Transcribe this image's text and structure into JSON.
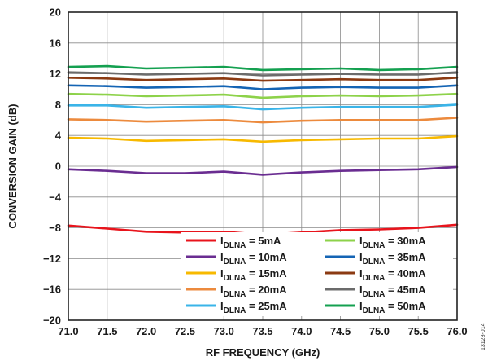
{
  "chart_data": {
    "type": "line",
    "xlabel": "RF FREQUENCY (GHz)",
    "ylabel": "CONVERSION GAIN (dB)",
    "xlim": [
      71.0,
      76.0
    ],
    "ylim": [
      -20,
      20
    ],
    "x_ticks": [
      "71.0",
      "71.5",
      "72.0",
      "72.5",
      "73.0",
      "73.5",
      "74.0",
      "74.5",
      "75.0",
      "75.5",
      "76.0"
    ],
    "y_ticks": [
      "20",
      "16",
      "12",
      "8",
      "4",
      "0",
      "−4",
      "−8",
      "−12",
      "−16",
      "−20"
    ],
    "grid": true,
    "legend_position": "bottom-right",
    "figure_id": "13128-014",
    "x": [
      71.0,
      71.5,
      72.0,
      72.5,
      73.0,
      73.5,
      74.0,
      74.5,
      75.0,
      75.5,
      76.0
    ],
    "series": [
      {
        "name": "I",
        "sub": "DLNA",
        "suffix": " = 5mA",
        "color": "#e8141c",
        "values": [
          -7.7,
          -8.1,
          -8.5,
          -8.6,
          -8.5,
          -8.9,
          -8.6,
          -8.3,
          -8.2,
          -8.0,
          -7.6
        ]
      },
      {
        "name": "I",
        "sub": "DLNA",
        "suffix": " = 10mA",
        "color": "#6a2d91",
        "values": [
          -0.4,
          -0.6,
          -0.9,
          -0.9,
          -0.7,
          -1.1,
          -0.8,
          -0.6,
          -0.5,
          -0.4,
          -0.1
        ]
      },
      {
        "name": "I",
        "sub": "DLNA",
        "suffix": " = 15mA",
        "color": "#f7b900",
        "values": [
          3.7,
          3.6,
          3.3,
          3.4,
          3.5,
          3.2,
          3.4,
          3.5,
          3.6,
          3.6,
          3.9
        ]
      },
      {
        "name": "I",
        "sub": "DLNA",
        "suffix": " = 20mA",
        "color": "#ec8a3d",
        "values": [
          6.1,
          6.0,
          5.8,
          5.9,
          6.0,
          5.7,
          5.9,
          6.0,
          6.0,
          6.0,
          6.3
        ]
      },
      {
        "name": "I",
        "sub": "DLNA",
        "suffix": " = 25mA",
        "color": "#3ab4e8",
        "values": [
          7.9,
          7.9,
          7.6,
          7.7,
          7.8,
          7.4,
          7.6,
          7.7,
          7.7,
          7.7,
          8.0
        ]
      },
      {
        "name": "I",
        "sub": "DLNA",
        "suffix": " = 30mA",
        "color": "#8dd24a",
        "values": [
          9.4,
          9.3,
          9.1,
          9.2,
          9.3,
          8.9,
          9.1,
          9.2,
          9.1,
          9.2,
          9.4
        ]
      },
      {
        "name": "I",
        "sub": "DLNA",
        "suffix": " = 35mA",
        "color": "#1464b4",
        "values": [
          10.5,
          10.4,
          10.2,
          10.3,
          10.4,
          10.0,
          10.2,
          10.3,
          10.2,
          10.2,
          10.5
        ]
      },
      {
        "name": "I",
        "sub": "DLNA",
        "suffix": " = 40mA",
        "color": "#8b3a12",
        "values": [
          11.5,
          11.4,
          11.2,
          11.3,
          11.4,
          11.1,
          11.2,
          11.3,
          11.2,
          11.2,
          11.5
        ]
      },
      {
        "name": "I",
        "sub": "DLNA",
        "suffix": " = 45mA",
        "color": "#6b6b6b",
        "values": [
          12.2,
          12.1,
          11.9,
          12.0,
          12.1,
          11.8,
          11.9,
          12.0,
          11.9,
          11.9,
          12.2
        ]
      },
      {
        "name": "I",
        "sub": "DLNA",
        "suffix": " = 50mA",
        "color": "#14a050",
        "values": [
          12.9,
          13.0,
          12.7,
          12.8,
          12.9,
          12.5,
          12.6,
          12.7,
          12.5,
          12.6,
          12.9
        ]
      }
    ]
  }
}
